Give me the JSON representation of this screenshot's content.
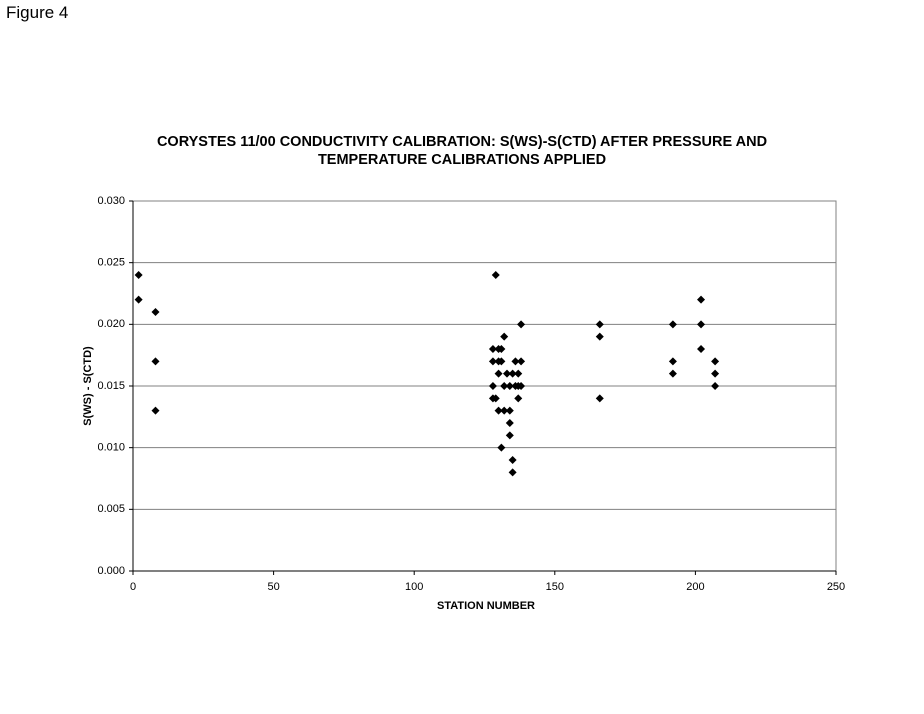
{
  "figure_label": "Figure 4",
  "chart_data": {
    "type": "scatter",
    "title": "CORYSTES 11/00 CONDUCTIVITY CALIBRATION: S(WS)-S(CTD) AFTER PRESSURE AND TEMPERATURE CALIBRATIONS APPLIED",
    "x_label": "STATION NUMBER",
    "y_label": "S(WS) - S(CTD)",
    "xlim": [
      0,
      250
    ],
    "xticks": [
      0,
      50,
      100,
      150,
      200,
      250
    ],
    "ylim": [
      0,
      0.03
    ],
    "yticks": [
      {
        "value": 0,
        "label": "0.000"
      },
      {
        "value": 0.005,
        "label": "0.005"
      },
      {
        "value": 0.01,
        "label": "0.010"
      },
      {
        "value": 0.015,
        "label": "0.015"
      },
      {
        "value": 0.02,
        "label": "0.020"
      },
      {
        "value": 0.025,
        "label": "0.025"
      },
      {
        "value": 0.03,
        "label": "0.030"
      }
    ],
    "grid": true,
    "color": "#000000",
    "x": [
      2,
      2,
      8,
      8,
      8,
      129,
      128,
      130,
      131,
      132,
      128,
      130,
      131,
      130,
      133,
      128,
      132,
      134,
      128,
      129,
      130,
      132,
      134,
      134,
      134,
      131,
      135,
      135,
      136,
      138,
      135,
      137,
      136,
      137,
      138,
      137,
      138,
      166,
      166,
      166,
      192,
      192,
      192,
      202,
      202,
      202,
      207,
      207,
      207
    ],
    "values": [
      0.024,
      0.022,
      0.021,
      0.017,
      0.013,
      0.024,
      0.018,
      0.018,
      0.018,
      0.019,
      0.017,
      0.017,
      0.017,
      0.016,
      0.016,
      0.015,
      0.015,
      0.015,
      0.014,
      0.014,
      0.013,
      0.013,
      0.013,
      0.012,
      0.011,
      0.01,
      0.009,
      0.008,
      0.017,
      0.017,
      0.016,
      0.016,
      0.015,
      0.015,
      0.015,
      0.014,
      0.02,
      0.02,
      0.019,
      0.014,
      0.02,
      0.017,
      0.016,
      0.022,
      0.02,
      0.018,
      0.017,
      0.016,
      0.015
    ]
  }
}
